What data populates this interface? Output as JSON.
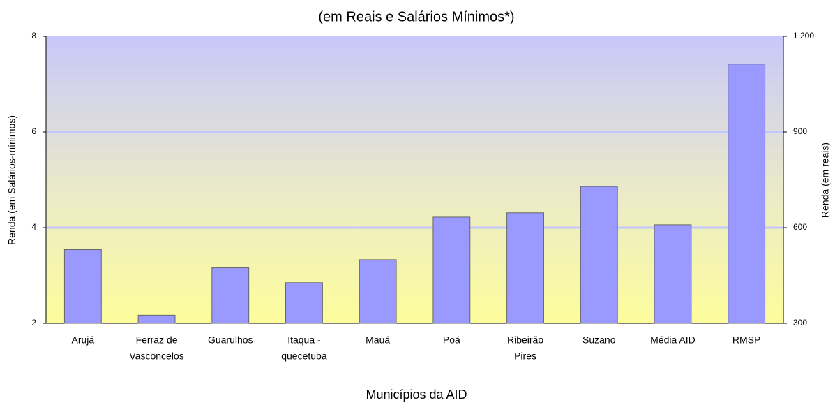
{
  "chart_data": {
    "type": "bar",
    "title": "(em Reais e Salários Mínimos*)",
    "x_label": "Municípios da AID",
    "y_label": "Renda (em Salários-mínimos)",
    "y2_label": "Renda (em reais)",
    "categories": [
      [
        "Arujá"
      ],
      [
        "Ferraz de",
        "Vasconcelos"
      ],
      [
        "Guarulhos"
      ],
      [
        "Itaqua -",
        "quecetuba"
      ],
      [
        "Mauá"
      ],
      [
        "Poá"
      ],
      [
        "Ribeirão",
        "Pires"
      ],
      [
        "Suzano"
      ],
      [
        "Média AID"
      ],
      [
        "RMSP"
      ]
    ],
    "values": [
      3.54,
      2.17,
      3.16,
      2.85,
      3.33,
      4.22,
      4.31,
      4.86,
      4.06,
      7.42
    ],
    "color": "#9999ff",
    "ylim": [
      2,
      8
    ],
    "yticks": [
      2,
      4,
      6,
      8
    ],
    "y2lim": [
      300,
      1200
    ],
    "y2ticks": [
      300,
      600,
      900,
      {
        "value": 1200,
        "label": "1.200"
      }
    ],
    "grid": true
  }
}
